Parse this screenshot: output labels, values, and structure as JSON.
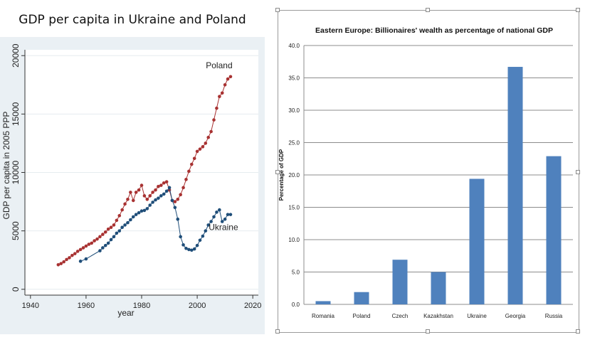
{
  "left_title": "GDP per capita in Ukraine and Poland",
  "chart_data": [
    {
      "type": "line",
      "title": "GDP per capita in Ukraine and Poland",
      "xlabel": "year",
      "ylabel": "GDP per capita in 2005 PPP",
      "xlim": [
        1938,
        2022
      ],
      "ylim": [
        -500,
        20500
      ],
      "xticks": [
        "1940",
        "1960",
        "1980",
        "2000",
        "2020"
      ],
      "yticks": [
        "0",
        "5000",
        "10000",
        "15000",
        "20000"
      ],
      "grid": true,
      "series": [
        {
          "name": "Poland",
          "color": "#a83232",
          "x": [
            1950,
            1951,
            1952,
            1953,
            1954,
            1955,
            1956,
            1957,
            1958,
            1959,
            1960,
            1961,
            1962,
            1963,
            1964,
            1965,
            1966,
            1967,
            1968,
            1969,
            1970,
            1971,
            1972,
            1973,
            1974,
            1975,
            1976,
            1977,
            1978,
            1979,
            1980,
            1981,
            1982,
            1983,
            1984,
            1985,
            1986,
            1987,
            1988,
            1989,
            1990,
            1991,
            1992,
            1993,
            1994,
            1995,
            1996,
            1997,
            1998,
            1999,
            2000,
            2001,
            2002,
            2003,
            2004,
            2005,
            2006,
            2007,
            2008,
            2009,
            2010,
            2011,
            2012
          ],
          "y": [
            2100,
            2200,
            2350,
            2550,
            2700,
            2900,
            3050,
            3250,
            3400,
            3550,
            3700,
            3850,
            3950,
            4150,
            4300,
            4500,
            4700,
            4900,
            5150,
            5300,
            5500,
            5900,
            6300,
            6800,
            7300,
            7700,
            8300,
            7600,
            8300,
            8500,
            8900,
            8000,
            7700,
            8000,
            8300,
            8500,
            8800,
            8900,
            9100,
            9200,
            8500,
            7600,
            7500,
            7700,
            8100,
            8700,
            9400,
            10100,
            10700,
            11200,
            11800,
            12000,
            12200,
            12500,
            13000,
            13500,
            14500,
            15500,
            16500,
            16800,
            17500,
            18000,
            18200
          ]
        },
        {
          "name": "Ukraine",
          "color": "#1f4e79",
          "x": [
            1958,
            1960,
            1965,
            1966,
            1967,
            1968,
            1969,
            1970,
            1971,
            1972,
            1973,
            1974,
            1975,
            1976,
            1977,
            1978,
            1979,
            1980,
            1981,
            1982,
            1983,
            1984,
            1985,
            1986,
            1987,
            1988,
            1989,
            1990,
            1991,
            1992,
            1993,
            1994,
            1995,
            1996,
            1997,
            1998,
            1999,
            2000,
            2001,
            2002,
            2003,
            2004,
            2005,
            2006,
            2007,
            2008,
            2009,
            2010,
            2011,
            2012
          ],
          "y": [
            2400,
            2600,
            3300,
            3550,
            3750,
            3950,
            4250,
            4500,
            4800,
            5000,
            5300,
            5500,
            5700,
            5950,
            6200,
            6400,
            6550,
            6700,
            6750,
            6900,
            7200,
            7450,
            7650,
            7800,
            8000,
            8150,
            8400,
            8700,
            7600,
            7000,
            6000,
            4500,
            3800,
            3500,
            3400,
            3350,
            3450,
            3750,
            4200,
            4550,
            5000,
            5500,
            5800,
            6200,
            6600,
            6800,
            5800,
            6000,
            6400,
            6400
          ]
        }
      ]
    },
    {
      "type": "bar",
      "title": "Eastern Europe: Billionaires' wealth as percentage of national GDP",
      "xlabel": "",
      "ylabel": "Percentage of GDP",
      "ylim": [
        0,
        40
      ],
      "yticks": [
        "0.0",
        "5.0",
        "10.0",
        "15.0",
        "20.0",
        "25.0",
        "30.0",
        "35.0",
        "40.0"
      ],
      "grid": true,
      "bar_color": "#4f81bd",
      "categories": [
        "Romania",
        "Poland",
        "Czech",
        "Kazakhstan",
        "Ukraine",
        "Georgia",
        "Russia"
      ],
      "values": [
        0.5,
        1.9,
        6.9,
        5.0,
        19.4,
        36.7,
        22.9
      ]
    }
  ]
}
